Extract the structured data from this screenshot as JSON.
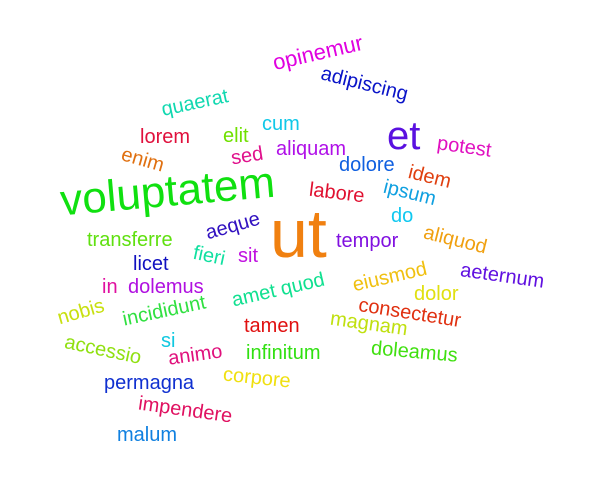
{
  "words": [
    {
      "text": "opinemur",
      "color": "#e000e0"
    },
    {
      "text": "adipiscing",
      "color": "#0a14c8"
    },
    {
      "text": "quaerat",
      "color": "#10d8b0"
    },
    {
      "text": "et",
      "color": "#5a10e0"
    },
    {
      "text": "cum",
      "color": "#10c8e8"
    },
    {
      "text": "elit",
      "color": "#70e000"
    },
    {
      "text": "lorem",
      "color": "#e0103c"
    },
    {
      "text": "potest",
      "color": "#e010c0"
    },
    {
      "text": "sed",
      "color": "#e0108c"
    },
    {
      "text": "aliquam",
      "color": "#b010e8"
    },
    {
      "text": "enim",
      "color": "#e07010"
    },
    {
      "text": "dolore",
      "color": "#1060e0"
    },
    {
      "text": "idem",
      "color": "#e04010"
    },
    {
      "text": "voluptatem",
      "color": "#10e010"
    },
    {
      "text": "labore",
      "color": "#e01030"
    },
    {
      "text": "ipsum",
      "color": "#10a0e0"
    },
    {
      "text": "do",
      "color": "#10c8f0"
    },
    {
      "text": "ut",
      "color": "#f08010"
    },
    {
      "text": "aeque",
      "color": "#3010c0"
    },
    {
      "text": "transferre",
      "color": "#60e010"
    },
    {
      "text": "aliquod",
      "color": "#f0a010"
    },
    {
      "text": "tempor",
      "color": "#8010e0"
    },
    {
      "text": "fieri",
      "color": "#10e0a0"
    },
    {
      "text": "sit",
      "color": "#c010e0"
    },
    {
      "text": "licet",
      "color": "#1010c0"
    },
    {
      "text": "eiusmod",
      "color": "#f0c010"
    },
    {
      "text": "aeternum",
      "color": "#6010e0"
    },
    {
      "text": "in",
      "color": "#e010a0"
    },
    {
      "text": "dolemus",
      "color": "#b010e0"
    },
    {
      "text": "amet quod",
      "color": "#10e090"
    },
    {
      "text": "dolor",
      "color": "#e0e010"
    },
    {
      "text": "consectetur",
      "color": "#e03010"
    },
    {
      "text": "nobis",
      "color": "#c8e010"
    },
    {
      "text": "incididunt",
      "color": "#30e040"
    },
    {
      "text": "magnam",
      "color": "#c0e010"
    },
    {
      "text": "tamen",
      "color": "#e01010"
    },
    {
      "text": "si",
      "color": "#10c8e0"
    },
    {
      "text": "accessio",
      "color": "#90e010"
    },
    {
      "text": "infinitum",
      "color": "#30e010"
    },
    {
      "text": "doleamus",
      "color": "#40e010"
    },
    {
      "text": "animo",
      "color": "#e0107c"
    },
    {
      "text": "corpore",
      "color": "#f0e010"
    },
    {
      "text": "permagna",
      "color": "#1030d0"
    },
    {
      "text": "impendere",
      "color": "#e01060"
    },
    {
      "text": "malum",
      "color": "#1080e0"
    }
  ]
}
